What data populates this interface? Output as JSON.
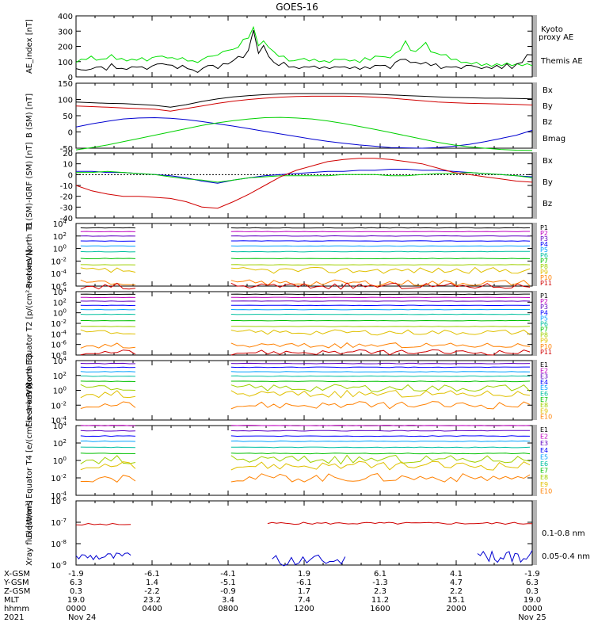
{
  "title": "GOES-16",
  "chart_data": [
    {
      "type": "line",
      "ylabel": "AE_index [nT]",
      "ylim": [
        0,
        400
      ],
      "yticks": [
        "400",
        "300",
        "200",
        "100",
        "0"
      ],
      "series": [
        {
          "name": "Kyoto proxy AE",
          "color": "#00e000",
          "values": [
            100,
            110,
            120,
            130,
            115,
            110,
            125,
            140,
            120,
            115,
            110,
            110,
            115,
            120,
            110,
            120,
            140,
            130,
            130,
            120,
            120,
            120,
            110,
            100,
            100,
            110,
            140,
            130,
            150,
            160,
            180,
            175,
            200,
            240,
            260,
            320,
            210,
            230,
            200,
            160,
            140,
            130,
            110,
            100,
            120,
            115,
            110,
            110,
            105,
            100,
            100,
            110,
            120,
            110,
            110,
            105,
            100,
            120,
            115,
            130,
            140,
            125,
            130,
            150,
            180,
            230,
            180,
            160,
            200,
            220,
            170,
            150,
            150,
            140,
            120,
            110,
            100,
            90,
            90,
            90,
            80,
            80,
            75,
            80,
            80,
            85,
            80,
            80,
            80,
            80,
            80
          ]
        },
        {
          "name": "Themis AE",
          "color": "#000000",
          "values": [
            60,
            40,
            50,
            45,
            70,
            60,
            50,
            80,
            60,
            50,
            55,
            60,
            70,
            60,
            55,
            65,
            90,
            80,
            85,
            70,
            60,
            70,
            60,
            40,
            35,
            50,
            80,
            70,
            60,
            80,
            90,
            100,
            140,
            120,
            180,
            300,
            160,
            200,
            140,
            90,
            80,
            90,
            70,
            60,
            60,
            60,
            70,
            65,
            60,
            60,
            60,
            60,
            70,
            60,
            60,
            60,
            55,
            60,
            60,
            70,
            80,
            70,
            60,
            90,
            120,
            110,
            100,
            90,
            90,
            90,
            80,
            80,
            60,
            60,
            70,
            60,
            60,
            70,
            80,
            60,
            60,
            60,
            60,
            70,
            60,
            80,
            60,
            80,
            100,
            140,
            150
          ]
        }
      ]
    },
    {
      "type": "line",
      "ylabel": "B (SM) [nT]",
      "ylim": [
        -50,
        150
      ],
      "yticks": [
        "150",
        "100",
        "50",
        "0",
        "-50"
      ],
      "series": [
        {
          "name": "Bx",
          "color": "#0000d0",
          "values": [
            15,
            25,
            33,
            40,
            43,
            44,
            42,
            38,
            32,
            25,
            18,
            10,
            2,
            -6,
            -14,
            -22,
            -29,
            -35,
            -40,
            -44,
            -48,
            -49,
            -50,
            -48,
            -44,
            -38,
            -30,
            -20,
            -10,
            5
          ]
        },
        {
          "name": "By",
          "color": "#00d000",
          "values": [
            -55,
            -48,
            -40,
            -30,
            -20,
            -10,
            0,
            10,
            20,
            28,
            35,
            40,
            44,
            45,
            43,
            40,
            34,
            26,
            17,
            8,
            -2,
            -12,
            -22,
            -32,
            -40,
            -46,
            -50,
            -54,
            -56,
            -57
          ]
        },
        {
          "name": "Bz",
          "color": "#d00000",
          "values": [
            80,
            78,
            76,
            74,
            72,
            70,
            64,
            72,
            80,
            88,
            95,
            100,
            104,
            107,
            109,
            110,
            110,
            110,
            109,
            107,
            104,
            100,
            96,
            92,
            90,
            88,
            87,
            86,
            85,
            83
          ]
        },
        {
          "name": "Bmag",
          "color": "#000000",
          "values": [
            92,
            90,
            88,
            87,
            85,
            82,
            76,
            84,
            94,
            102,
            108,
            112,
            115,
            117,
            118,
            118,
            118,
            118,
            117,
            116,
            114,
            112,
            110,
            108,
            106,
            105,
            104,
            104,
            103,
            102
          ]
        }
      ]
    },
    {
      "type": "line",
      "ylabel": "B (SM)-IGRF (SM) [nT]",
      "ylim": [
        -40,
        20
      ],
      "yticks": [
        "20",
        "10",
        "0",
        "-10",
        "-20",
        "-30",
        "-40"
      ],
      "series": [
        {
          "name": "Bx",
          "color": "#0000d0",
          "values": [
            3,
            3,
            2,
            2,
            1,
            0,
            -1,
            -3,
            -6,
            -8,
            -5,
            -3,
            -1,
            0,
            1,
            2,
            3,
            3,
            4,
            4,
            5,
            5,
            4,
            4,
            3,
            2,
            1,
            0,
            -1,
            -2
          ]
        },
        {
          "name": "By",
          "color": "#00d000",
          "values": [
            2,
            2,
            3,
            2,
            1,
            0,
            -2,
            -4,
            -5,
            -7,
            -5,
            -3,
            -2,
            -1,
            -1,
            -1,
            -1,
            0,
            0,
            0,
            -1,
            -1,
            0,
            1,
            1,
            2,
            1,
            0,
            -1,
            -3
          ]
        },
        {
          "name": "Bz",
          "color": "#d00000",
          "values": [
            -10,
            -15,
            -18,
            -20,
            -20,
            -21,
            -22,
            -25,
            -30,
            -31,
            -25,
            -18,
            -10,
            -2,
            4,
            8,
            12,
            14,
            15,
            15,
            14,
            12,
            10,
            6,
            2,
            0,
            -2,
            -4,
            -6,
            -7
          ]
        }
      ]
    },
    {
      "type": "line",
      "ylabel": "Protons North T1",
      "ylog": true,
      "yticks": [
        "10^4",
        "10^2",
        "10^0",
        "10^-2",
        "10^-4",
        "10^-6"
      ],
      "gap": {
        "from": 0.13,
        "to": 0.34
      },
      "series_names": [
        "P1",
        "P2",
        "P3",
        "P4",
        "P5",
        "P6",
        "P7",
        "P8",
        "P9",
        "P10",
        "P11"
      ],
      "levels": [
        3.3,
        2.7,
        2.0,
        1.2,
        0.4,
        -0.5,
        -1.6,
        -2.6,
        -3.5,
        -5.5,
        -6.0
      ]
    },
    {
      "type": "line",
      "ylabel": "Protons Equator T2 [p/(cm²-s-sr-keV)]",
      "ylog": true,
      "yticks": [
        "10^4",
        "10^2",
        "10^0",
        "10^-2",
        "10^-4",
        "10^-6",
        "10^-8"
      ],
      "gap": {
        "from": 0.13,
        "to": 0.34
      },
      "series_names": [
        "P1",
        "P2",
        "P3",
        "P4",
        "P5",
        "P6",
        "P7",
        "P8",
        "P9",
        "P10",
        "P11"
      ],
      "levels": [
        3.5,
        2.9,
        2.2,
        1.4,
        0.6,
        -0.3,
        -1.5,
        -2.6,
        -3.7,
        -6.2,
        -7.5
      ]
    },
    {
      "type": "line",
      "ylabel": "Electrons North T3",
      "ylog": true,
      "yticks": [
        "10^4",
        "10^2",
        "10^0",
        "10^-2",
        "10^-4"
      ],
      "gap": {
        "from": 0.13,
        "to": 0.34
      },
      "series_names": [
        "E1",
        "E2",
        "E3",
        "E4",
        "E5",
        "E6",
        "E7",
        "E8",
        "E9",
        "E10"
      ],
      "levels": [
        4.6,
        4.1,
        3.6,
        3.1,
        2.5,
        1.9,
        1.2,
        0.3,
        -0.5,
        -2.0
      ]
    },
    {
      "type": "line",
      "ylabel": "Electrons Equator T4 [e/(cm²-s-sr-keV)]",
      "ylog": true,
      "yticks": [
        "10^4",
        "10^2",
        "10^0",
        "10^-2",
        "10^-4"
      ],
      "gap": {
        "from": 0.13,
        "to": 0.34
      },
      "series_names": [
        "E1",
        "E2",
        "E3",
        "E4",
        "E5",
        "E6",
        "E7",
        "E8",
        "E9",
        "E10"
      ],
      "levels": [
        4.6,
        4.0,
        3.4,
        2.8,
        2.2,
        1.5,
        0.8,
        0.1,
        -0.6,
        -2.0
      ]
    },
    {
      "type": "line",
      "ylabel": "Xray flux [W/m²]",
      "ylog": true,
      "yticks": [
        "10^-6",
        "10^-7",
        "10^-8",
        "10^-9"
      ],
      "series": [
        {
          "name": "0.1-0.8 nm",
          "color": "#d00000"
        },
        {
          "name": "0.05-0.4 nm",
          "color": "#0000d0"
        }
      ]
    }
  ],
  "legends": {
    "ae": [
      "Kyoto",
      "proxy AE",
      "Themis AE"
    ],
    "b": [
      "Bx",
      "By",
      "Bz",
      "Bmag"
    ],
    "dB": [
      "Bx",
      "By",
      "Bz"
    ],
    "xray": [
      "0.1-0.8 nm",
      "0.05-0.4 nm"
    ]
  },
  "colors": {
    "channels": [
      "#000000",
      "#c000c0",
      "#6000c0",
      "#0000ff",
      "#00a0ff",
      "#00c0a0",
      "#00c000",
      "#a0d000",
      "#e0c000",
      "#ff8000",
      "#d00000",
      "#a00000"
    ]
  },
  "footer": {
    "row_labels": [
      "X-GSM",
      "Y-GSM",
      "Z-GSM",
      "MLT",
      "hhmm",
      "2021"
    ],
    "columns": [
      [
        "-1.9",
        "6.3",
        "0.3",
        "19.0",
        "0000",
        "Nov 24"
      ],
      [
        "-6.1",
        "1.4",
        "-2.2",
        "23.2",
        "0400",
        ""
      ],
      [
        "-4.1",
        "-5.1",
        "-0.9",
        "3.4",
        "0800",
        ""
      ],
      [
        "1.9",
        "-6.1",
        "1.7",
        "7.4",
        "1200",
        ""
      ],
      [
        "6.1",
        "-1.3",
        "2.3",
        "11.2",
        "1600",
        ""
      ],
      [
        "4.1",
        "4.7",
        "2.2",
        "15.1",
        "2000",
        ""
      ],
      [
        "-1.9",
        "6.3",
        "0.3",
        "19.0",
        "0000",
        "Nov 25"
      ]
    ]
  }
}
